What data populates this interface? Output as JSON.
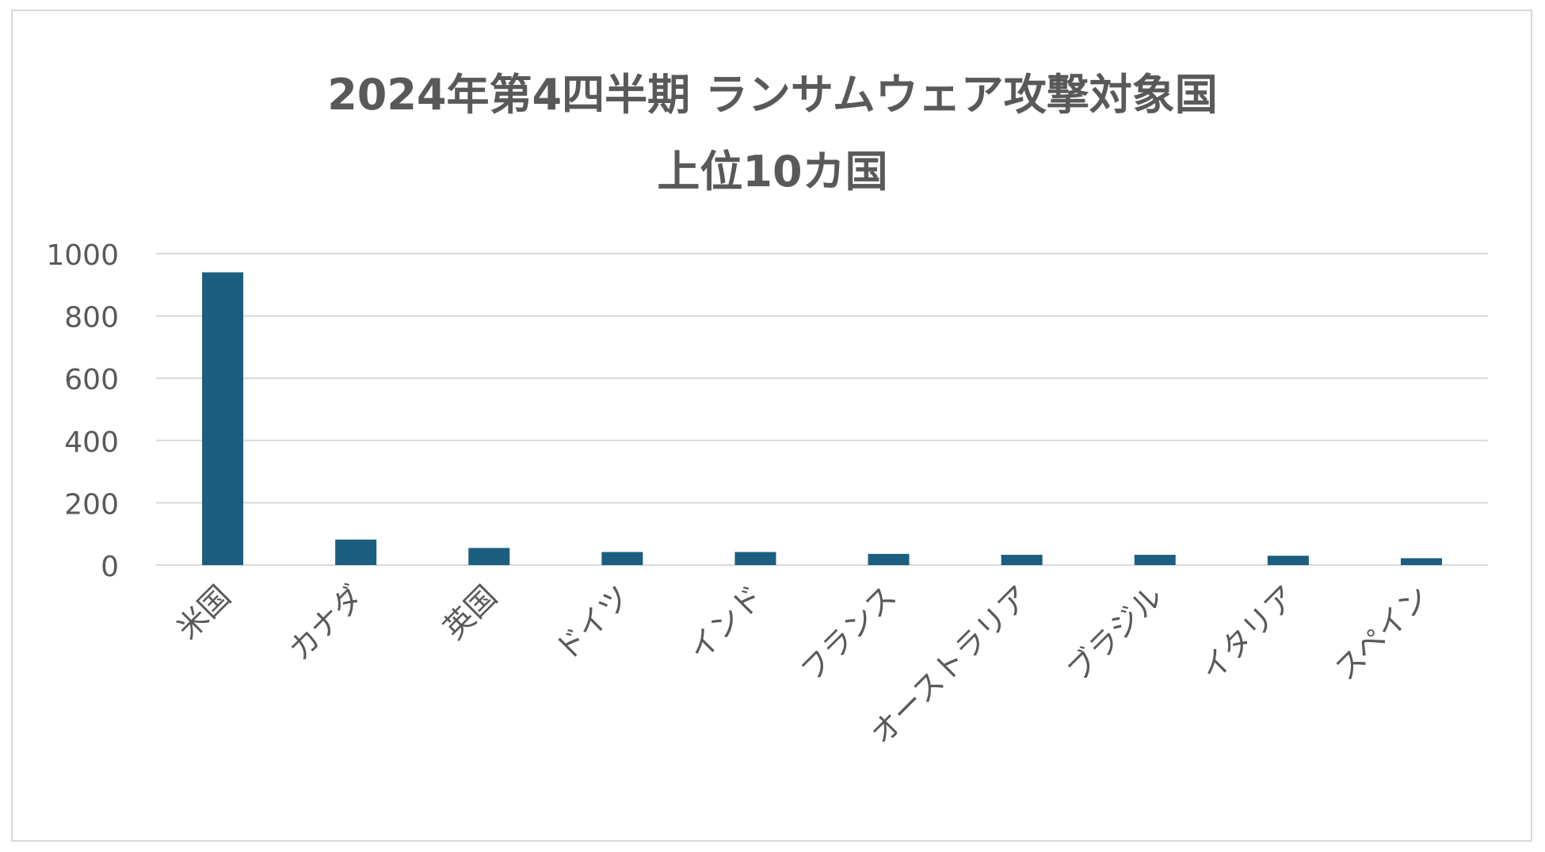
{
  "chart_data": {
    "type": "bar",
    "title": [
      "2024年第4四半期 ランサムウェア攻撃対象国",
      "上位10カ国"
    ],
    "xlabel": "",
    "ylabel": "",
    "categories": [
      "米国",
      "カナダ",
      "英国",
      "ドイツ",
      "インド",
      "フランス",
      "オーストラリア",
      "ブラジル",
      "イタリア",
      "スペイン"
    ],
    "values": [
      940,
      82,
      55,
      42,
      42,
      36,
      33,
      33,
      30,
      22
    ],
    "yticks": [
      "0",
      "200",
      "400",
      "600",
      "800",
      "1000"
    ],
    "ylim": [
      0,
      1000
    ],
    "grid": true,
    "legend": "none",
    "colors": {
      "bar": "#1b5e80",
      "grid": "#d9d9d9",
      "text": "#595959"
    }
  }
}
